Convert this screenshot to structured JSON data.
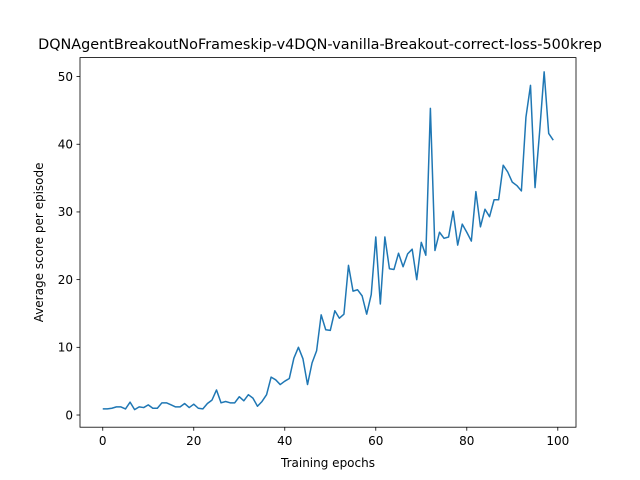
{
  "chart_data": {
    "type": "line",
    "title": "DQNAgentBreakoutNoFrameskip-v4DQN-vanilla-Breakout-correct-loss-500krep",
    "xlabel": "Training epochs",
    "ylabel": "Average score per episode",
    "xlim": [
      -5,
      104
    ],
    "ylim": [
      -1.8,
      52.8
    ],
    "xticks": [
      0,
      20,
      40,
      60,
      80,
      100
    ],
    "yticks": [
      0,
      10,
      20,
      30,
      40,
      50
    ],
    "grid": false,
    "series": [
      {
        "color": "#1f77b4",
        "x": [
          0,
          1,
          2,
          3,
          4,
          5,
          6,
          7,
          8,
          9,
          10,
          11,
          12,
          13,
          14,
          15,
          16,
          17,
          18,
          19,
          20,
          21,
          22,
          23,
          24,
          25,
          26,
          27,
          28,
          29,
          30,
          31,
          32,
          33,
          34,
          35,
          36,
          37,
          38,
          39,
          40,
          41,
          42,
          43,
          44,
          45,
          46,
          47,
          48,
          49,
          50,
          51,
          52,
          53,
          54,
          55,
          56,
          57,
          58,
          59,
          60,
          61,
          62,
          63,
          64,
          65,
          66,
          67,
          68,
          69,
          70,
          71,
          72,
          73,
          74,
          75,
          76,
          77,
          78,
          79,
          80,
          81,
          82,
          83,
          84,
          85,
          86,
          87,
          88,
          89,
          90,
          91,
          92,
          93,
          94,
          95,
          96,
          97,
          98,
          99
        ],
        "y": [
          0.9,
          0.9,
          1.0,
          1.2,
          1.2,
          0.9,
          1.9,
          0.8,
          1.2,
          1.1,
          1.5,
          1.0,
          1.0,
          1.8,
          1.8,
          1.5,
          1.2,
          1.2,
          1.7,
          1.1,
          1.6,
          1.0,
          0.9,
          1.7,
          2.2,
          3.7,
          1.8,
          2.0,
          1.8,
          1.8,
          2.7,
          2.1,
          3.0,
          2.5,
          1.3,
          2.0,
          3.0,
          5.6,
          5.2,
          4.5,
          5.0,
          5.4,
          8.4,
          10.0,
          8.3,
          4.5,
          7.7,
          9.5,
          14.8,
          12.6,
          12.5,
          15.4,
          14.3,
          14.9,
          22.1,
          18.3,
          18.5,
          17.6,
          14.9,
          17.8,
          26.3,
          16.4,
          26.3,
          21.6,
          21.5,
          23.9,
          21.9,
          23.8,
          24.5,
          20.0,
          25.5,
          23.6,
          45.3,
          24.3,
          27.0,
          26.1,
          26.3,
          30.1,
          25.1,
          28.2,
          27.0,
          25.7,
          33.0,
          27.8,
          30.4,
          29.3,
          31.8,
          31.8,
          36.9,
          35.9,
          34.4,
          33.9,
          33.1,
          44.0,
          48.7,
          33.6,
          41.8,
          50.7,
          41.6,
          40.6
        ]
      }
    ]
  }
}
